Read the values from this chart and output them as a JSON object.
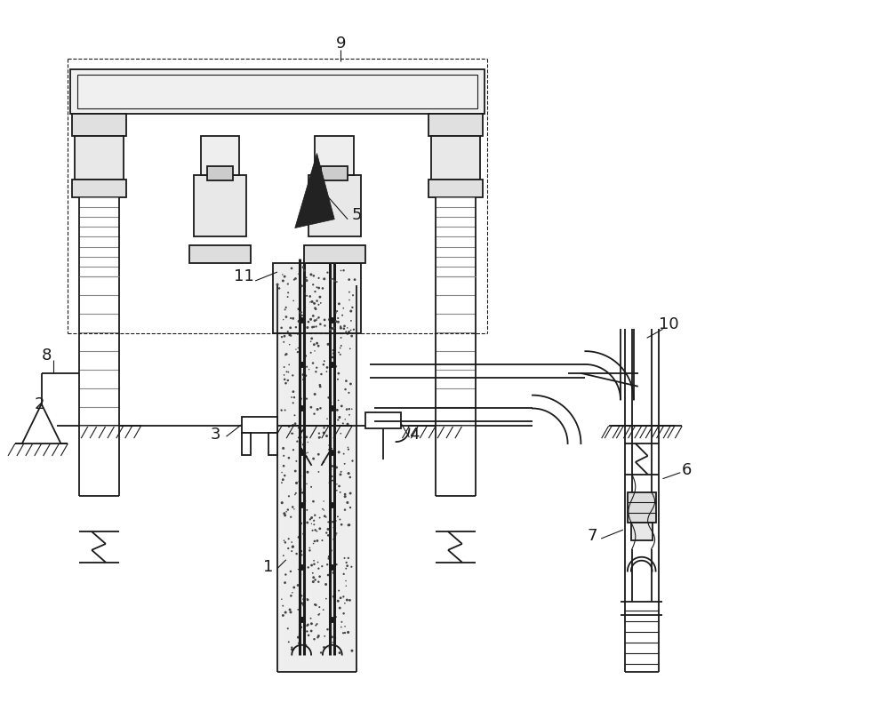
{
  "fig_width": 10.0,
  "fig_height": 8.18,
  "dpi": 100,
  "bg_color": "#ffffff",
  "lc": "#1a1a1a",
  "lw": 1.3,
  "tlw": 0.8
}
